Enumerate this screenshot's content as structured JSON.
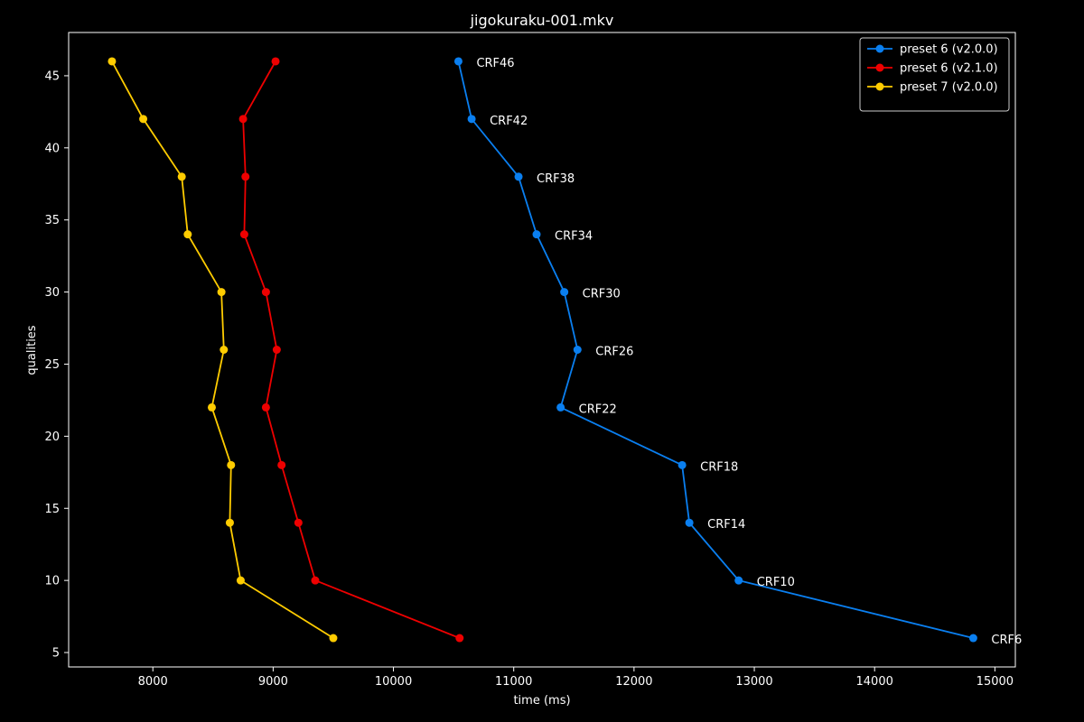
{
  "chart_data": {
    "type": "line",
    "title": "jigokuraku-001.mkv",
    "xlabel": "time (ms)",
    "ylabel": "qualities",
    "xlim": [
      7300,
      15170
    ],
    "ylim": [
      4,
      48
    ],
    "x_ticks": [
      8000,
      9000,
      10000,
      11000,
      12000,
      13000,
      14000,
      15000
    ],
    "y_ticks": [
      5,
      10,
      15,
      20,
      25,
      30,
      35,
      40,
      45
    ],
    "grid": false,
    "legend_position": "top-right",
    "series": [
      {
        "name": "preset 6 (v2.0.0)",
        "color": "#0a7ff0",
        "x": [
          10540,
          10650,
          11040,
          11190,
          11420,
          11530,
          11390,
          12400,
          12460,
          12870,
          14820
        ],
        "y": [
          46,
          42,
          38,
          34,
          30,
          26,
          22,
          18,
          14,
          10,
          6
        ],
        "labels": [
          "CRF46",
          "CRF42",
          "CRF38",
          "CRF34",
          "CRF30",
          "CRF26",
          "CRF22",
          "CRF18",
          "CRF14",
          "CRF10",
          "CRF6"
        ]
      },
      {
        "name": "preset 6 (v2.1.0)",
        "color": "#ee0000",
        "x": [
          9020,
          8750,
          8770,
          8760,
          8940,
          9030,
          8940,
          9070,
          9210,
          9350,
          10550
        ],
        "y": [
          46,
          42,
          38,
          34,
          30,
          26,
          22,
          18,
          14,
          10,
          6
        ]
      },
      {
        "name": "preset 7 (v2.0.0)",
        "color": "#ffcc00",
        "x": [
          7660,
          7920,
          8240,
          8290,
          8570,
          8590,
          8490,
          8650,
          8640,
          8730,
          9500
        ],
        "y": [
          46,
          42,
          38,
          34,
          30,
          26,
          22,
          18,
          14,
          10,
          6
        ]
      }
    ]
  }
}
